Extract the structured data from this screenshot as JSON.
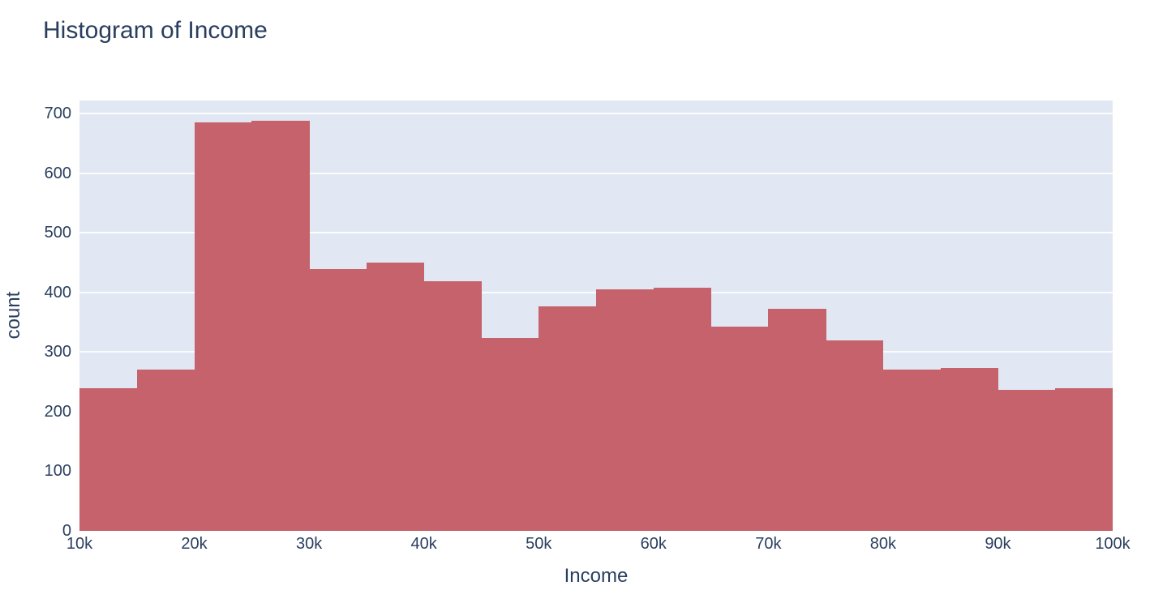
{
  "chart_data": {
    "type": "bar",
    "subtype": "histogram",
    "title": "Histogram of Income",
    "xlabel": "Income",
    "ylabel": "count",
    "bin_width_k": 5,
    "bin_edges_k": [
      10,
      15,
      20,
      25,
      30,
      35,
      40,
      45,
      50,
      55,
      60,
      65,
      70,
      75,
      80,
      85,
      90,
      95,
      100
    ],
    "counts": [
      240,
      270,
      685,
      688,
      439,
      450,
      419,
      324,
      376,
      405,
      408,
      343,
      372,
      319,
      270,
      273,
      236,
      239
    ],
    "x_tick_labels": [
      "10k",
      "20k",
      "30k",
      "40k",
      "50k",
      "60k",
      "70k",
      "80k",
      "90k",
      "100k"
    ],
    "y_ticks": [
      0,
      100,
      200,
      300,
      400,
      500,
      600,
      700
    ],
    "xlim_k": [
      10,
      100
    ],
    "ylim": [
      0,
      722
    ],
    "grid": "horizontal-only",
    "legend": "none",
    "colors": {
      "bar": "#c5626b",
      "plot_background": "#e2e8f3",
      "gridline": "#ffffff",
      "text": "#2a3f5f",
      "page_background": "#ffffff"
    }
  }
}
